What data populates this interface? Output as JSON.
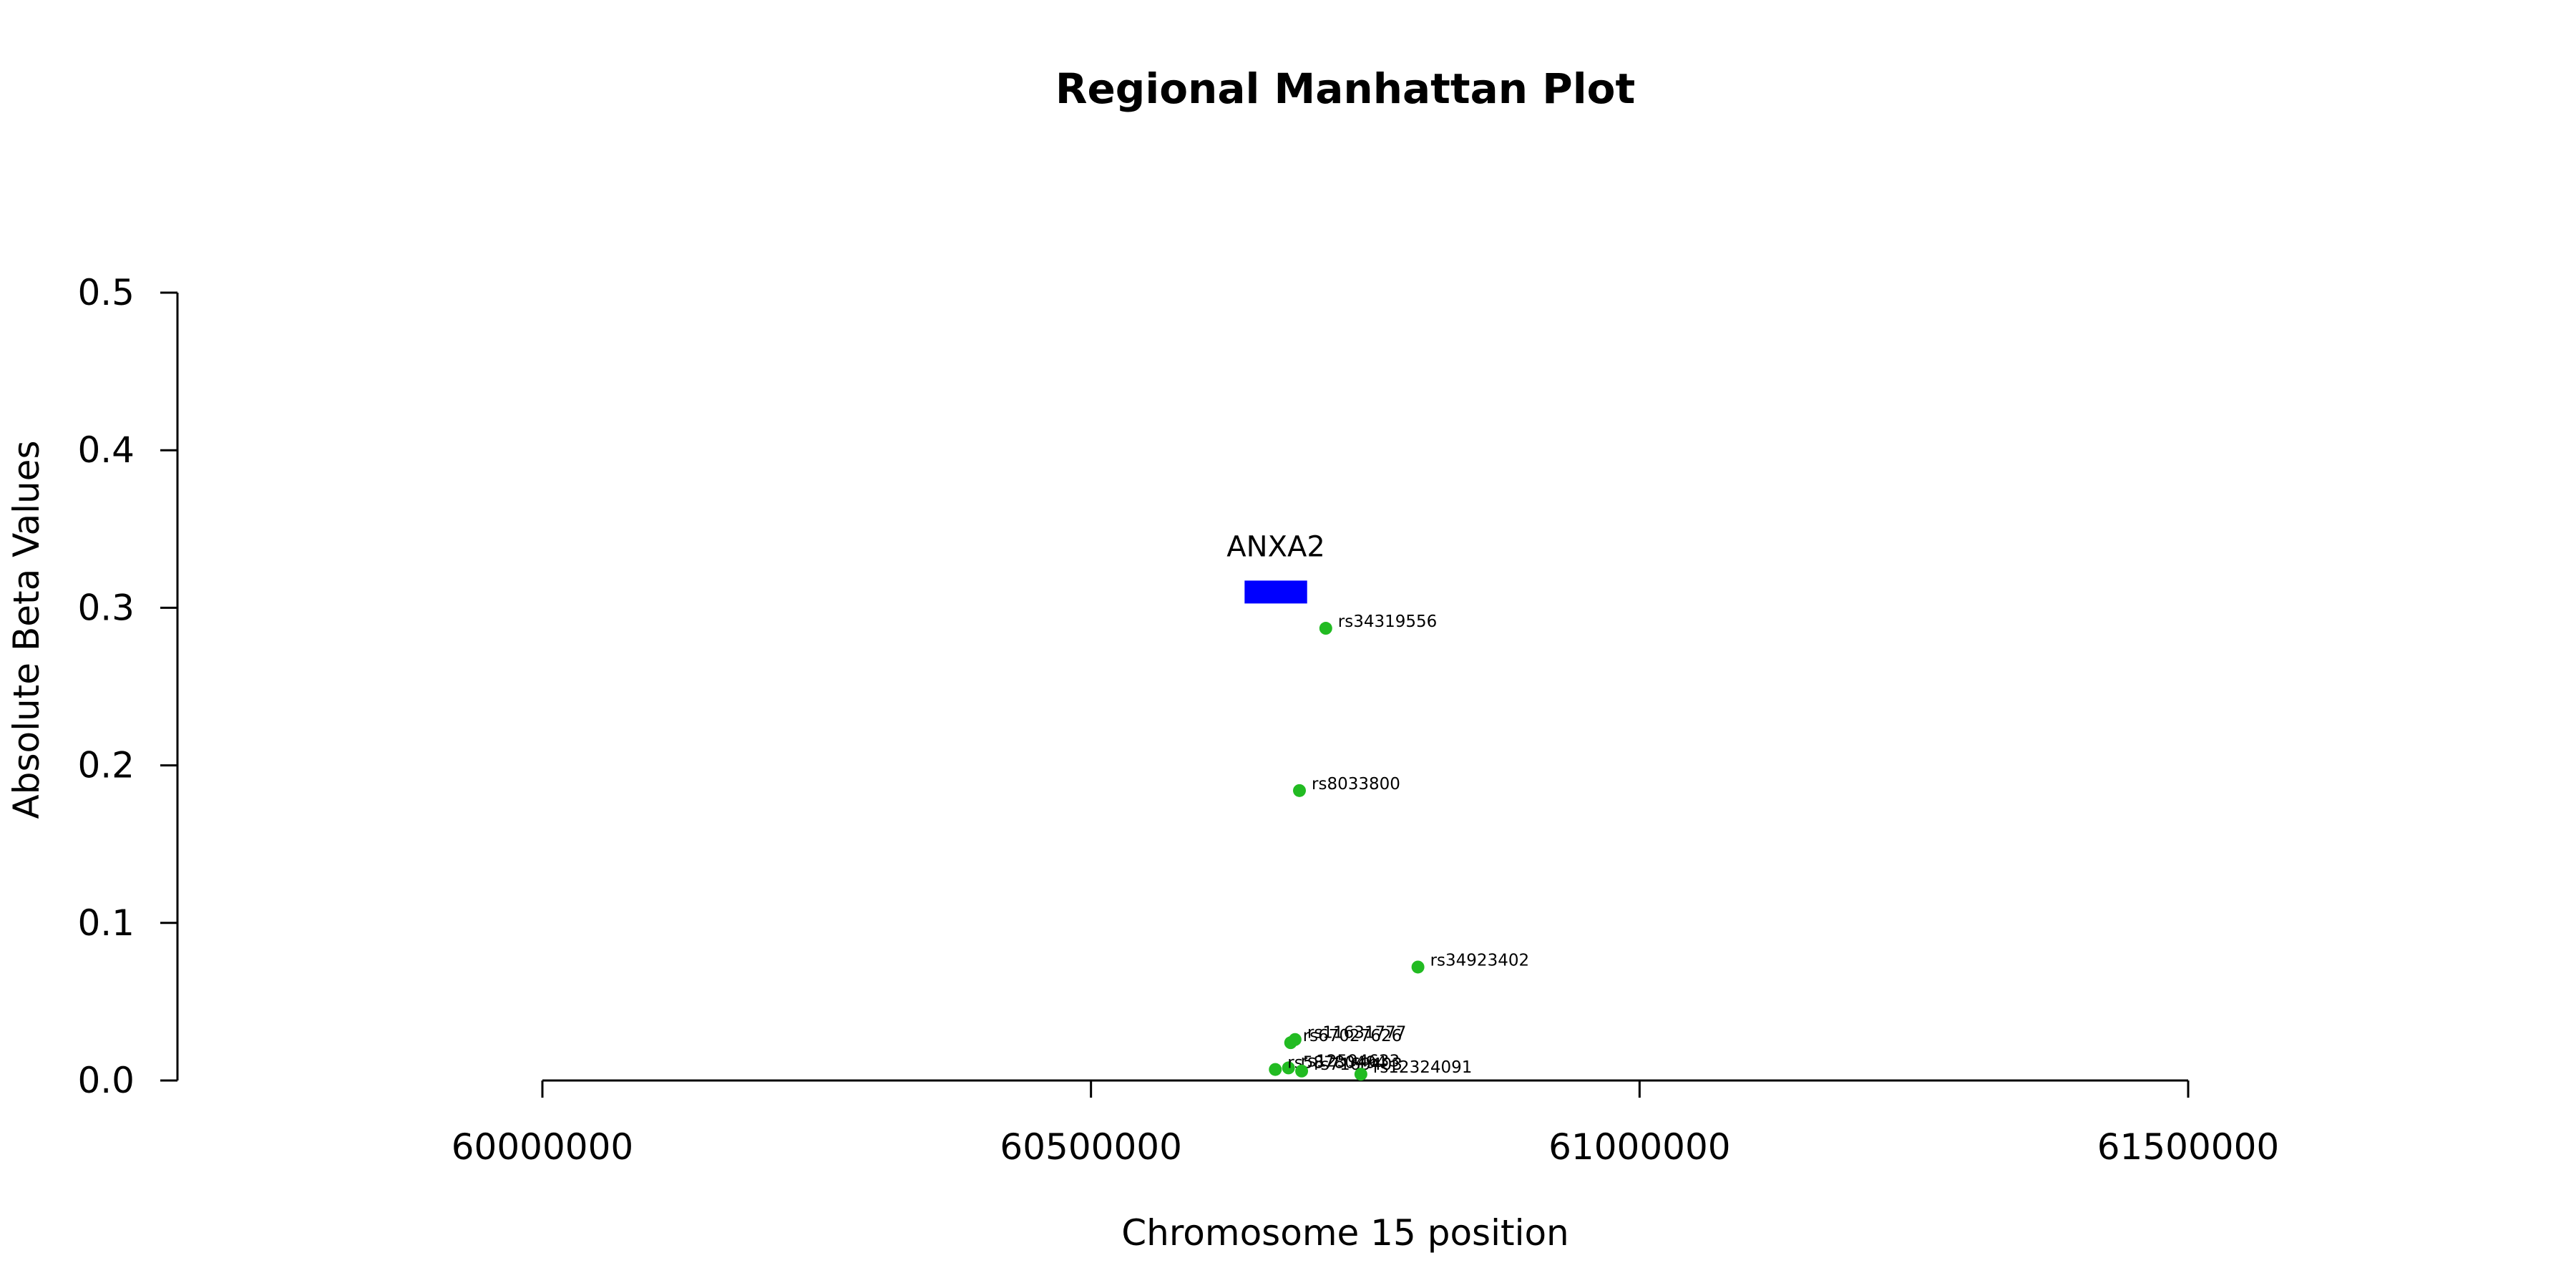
{
  "chart_data": {
    "type": "scatter",
    "title": "Regional Manhattan Plot",
    "xlabel": "Chromosome 15 position",
    "ylabel": "Absolute Beta Values",
    "xlim": [
      60000000,
      61500000
    ],
    "ylim": [
      0,
      0.5
    ],
    "x_ticks": [
      "60000000",
      "60500000",
      "61000000",
      "61500000"
    ],
    "y_ticks": [
      "0.0",
      "0.1",
      "0.2",
      "0.3",
      "0.4",
      "0.5"
    ],
    "grid": false,
    "point_color": "#22bb22",
    "genes": [
      {
        "name": "ANXA2",
        "start": 60640000,
        "end": 60697000,
        "y": 0.31,
        "color": "#0000ff"
      }
    ],
    "points": [
      {
        "label": "rs34319556",
        "x": 60714000,
        "y": 0.287
      },
      {
        "label": "rs8033800",
        "x": 60690000,
        "y": 0.184
      },
      {
        "label": "rs34923402",
        "x": 60798000,
        "y": 0.072
      },
      {
        "label": "rs11631777",
        "x": 60686000,
        "y": 0.026
      },
      {
        "label": "rs67027626",
        "x": 60682000,
        "y": 0.024
      },
      {
        "label": "rs12594633",
        "x": 60680000,
        "y": 0.008
      },
      {
        "label": "rs58780494",
        "x": 60668000,
        "y": 0.007
      },
      {
        "label": "rs7169403",
        "x": 60692000,
        "y": 0.006
      },
      {
        "label": "rs12324091",
        "x": 60746000,
        "y": 0.004
      }
    ]
  }
}
